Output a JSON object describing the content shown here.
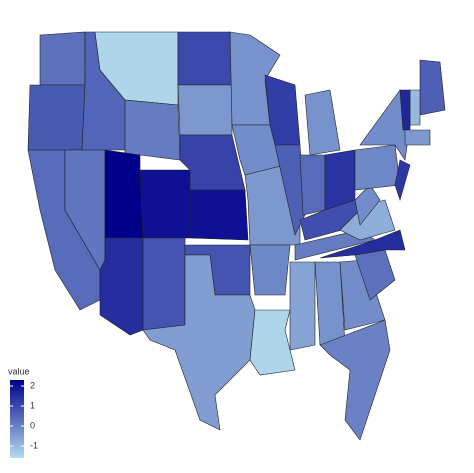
{
  "chart_data": {
    "type": "choropleth",
    "values": [
      0.3,
      0.7,
      0.4,
      0.2,
      0.5,
      -1.5,
      0.1,
      2.3,
      2.0,
      1.5,
      0.8,
      1.0,
      -0.4,
      1.1,
      2.0,
      0.8,
      -0.5,
      -0.3,
      -0.2,
      -0.4,
      -0.1,
      -1.5,
      1.2,
      0.6,
      -0.3,
      0.4,
      1.4,
      0.9,
      0.1,
      -0.6,
      -0.3,
      -0.2,
      0.0,
      0.3,
      1.5,
      -0.8,
      -0.2,
      -0.1,
      -0.2,
      1.3,
      0.6,
      -1.0,
      1.6,
      -0.4
    ],
    "legend_title": "value",
    "clim": [
      -1.6,
      2.3
    ],
    "cticks": [
      -1,
      0,
      1,
      2
    ],
    "colors": [
      "#b3dbed",
      "#00008b"
    ]
  }
}
